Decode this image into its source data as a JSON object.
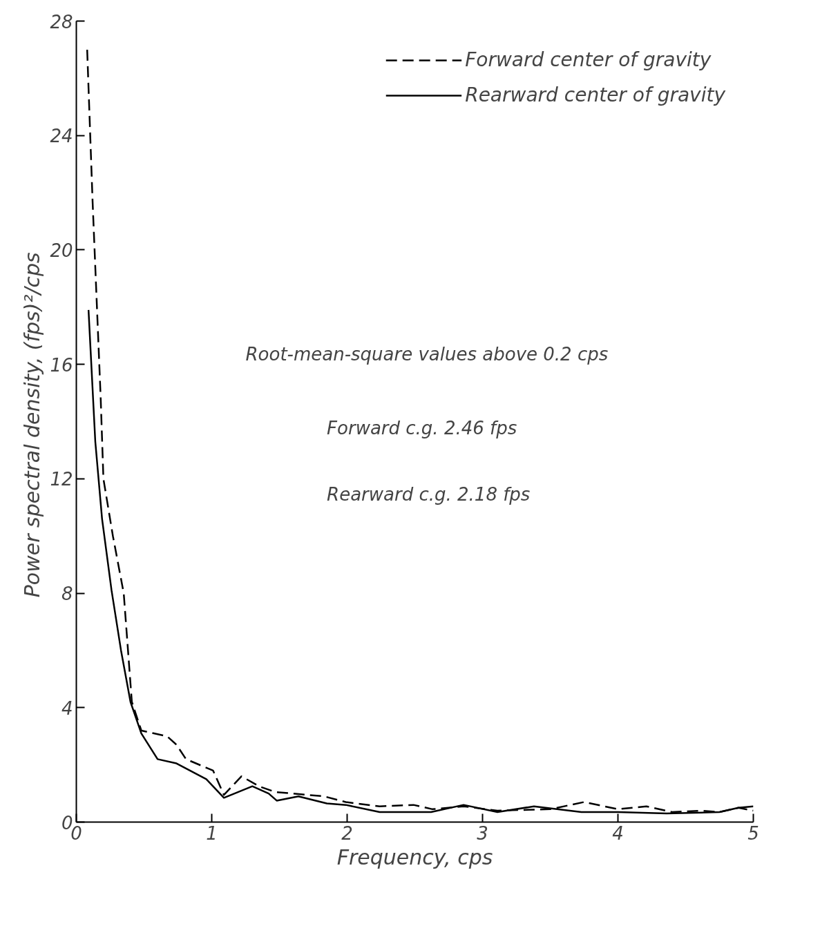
{
  "chart_data": {
    "type": "line",
    "xlabel": "Frequency, cps",
    "ylabel": "Power spectral density,  (fps)²/cps",
    "xlim": [
      0,
      5
    ],
    "ylim": [
      0,
      28
    ],
    "xticks": [
      0,
      1,
      2,
      3,
      4,
      5
    ],
    "yticks": [
      0,
      4,
      8,
      12,
      16,
      20,
      24,
      28
    ],
    "grid": false,
    "legend": "top right",
    "annotations": [
      "Root-mean-square values above 0.2 cps",
      "Forward c.g. 2.46 fps",
      "Rearward c.g. 2.18 fps"
    ],
    "series": [
      {
        "name": "Forward center of gravity",
        "color": "#000000",
        "line_style": "dashed",
        "x": [
          0.08,
          0.12,
          0.14,
          0.18,
          0.2,
          0.27,
          0.35,
          0.41,
          0.48,
          0.67,
          0.74,
          0.81,
          1.01,
          1.09,
          1.22,
          1.35,
          1.47,
          1.83,
          1.99,
          2.24,
          2.49,
          2.63,
          2.86,
          3.11,
          3.5,
          3.75,
          4.0,
          4.21,
          4.4,
          4.62,
          4.75,
          4.89,
          5.0
        ],
        "values": [
          27.0,
          21.7,
          19.4,
          14.8,
          12.0,
          10.0,
          8.0,
          4.2,
          3.2,
          3.0,
          2.7,
          2.2,
          1.8,
          0.95,
          1.6,
          1.25,
          1.05,
          0.9,
          0.7,
          0.55,
          0.6,
          0.45,
          0.55,
          0.4,
          0.45,
          0.7,
          0.45,
          0.55,
          0.35,
          0.4,
          0.35,
          0.5,
          0.4
        ]
      },
      {
        "name": "Rearward center of gravity",
        "color": "#000000",
        "line_style": "solid",
        "x": [
          0.09,
          0.14,
          0.19,
          0.26,
          0.33,
          0.4,
          0.48,
          0.6,
          0.74,
          0.96,
          1.09,
          1.3,
          1.42,
          1.48,
          1.64,
          1.85,
          1.99,
          2.24,
          2.49,
          2.62,
          2.86,
          3.11,
          3.38,
          3.73,
          4.0,
          4.36,
          4.75,
          4.89,
          5.0
        ],
        "values": [
          17.9,
          13.3,
          10.6,
          8.1,
          6.0,
          4.2,
          3.1,
          2.2,
          2.05,
          1.5,
          0.85,
          1.25,
          1.0,
          0.75,
          0.9,
          0.65,
          0.6,
          0.35,
          0.35,
          0.35,
          0.6,
          0.35,
          0.55,
          0.35,
          0.35,
          0.3,
          0.35,
          0.5,
          0.55
        ]
      }
    ]
  }
}
